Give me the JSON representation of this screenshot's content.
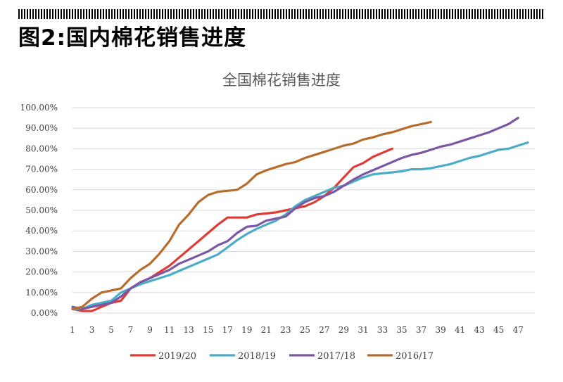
{
  "header": {
    "title": "图2:国内棉花销售进度"
  },
  "chart_data": {
    "type": "line",
    "title": "全国棉花销售进度",
    "xlabel": "",
    "ylabel": "",
    "x_ticks": [
      "1",
      "3",
      "5",
      "7",
      "9",
      "11",
      "13",
      "15",
      "17",
      "19",
      "21",
      "23",
      "25",
      "27",
      "29",
      "31",
      "33",
      "35",
      "37",
      "39",
      "41",
      "43",
      "45",
      "47"
    ],
    "xlim": [
      1,
      48
    ],
    "ylim": [
      0,
      100
    ],
    "y_ticks": [
      "0.00%",
      "10.00%",
      "20.00%",
      "30.00%",
      "40.00%",
      "50.00%",
      "60.00%",
      "70.00%",
      "80.00%",
      "90.00%",
      "100.00%"
    ],
    "grid": true,
    "legend_position": "bottom",
    "series": [
      {
        "name": "2019/20",
        "color": "#e03a35",
        "values": [
          2,
          1,
          1,
          3,
          5,
          6,
          12,
          15,
          17,
          20,
          23,
          27,
          31,
          35,
          39,
          43,
          46.5,
          46.5,
          46.5,
          48,
          48.5,
          49,
          50,
          51,
          52,
          54,
          57,
          61,
          66,
          71,
          73,
          76,
          78,
          80
        ]
      },
      {
        "name": "2018/19",
        "color": "#4bacc6",
        "values": [
          2,
          2,
          4,
          5,
          6,
          10,
          12,
          14,
          15.5,
          17,
          18.5,
          20.5,
          22.5,
          24.5,
          26.5,
          28.5,
          32,
          35.5,
          38.5,
          41,
          43,
          45,
          48,
          52,
          55,
          57,
          59,
          61,
          62,
          64,
          66,
          67.5,
          68,
          68.5,
          69,
          70,
          70,
          70.5,
          71.5,
          72.5,
          74,
          75.5,
          76.5,
          78,
          79.5,
          80,
          81.5,
          83
        ]
      },
      {
        "name": "2017/18",
        "color": "#7c57a4",
        "values": [
          3,
          2,
          3,
          4,
          5,
          8,
          12,
          15,
          17,
          19,
          21,
          24,
          26,
          28,
          30,
          33,
          35,
          39,
          42,
          42.5,
          45,
          46,
          47,
          51,
          54,
          56,
          57,
          59,
          62,
          65,
          67.5,
          69.5,
          71.5,
          73.5,
          75.5,
          77,
          78,
          79.5,
          81,
          82,
          83.5,
          85,
          86.5,
          88,
          90,
          92,
          95
        ]
      },
      {
        "name": "2016/17",
        "color": "#b86c2c",
        "values": [
          2,
          3,
          7,
          10,
          11,
          12,
          17,
          21,
          24,
          29,
          35,
          43,
          48,
          54,
          57.5,
          59,
          59.5,
          60,
          63,
          67.5,
          69.5,
          71,
          72.5,
          73.5,
          75.5,
          77,
          78.5,
          80,
          81.5,
          82.5,
          84.5,
          85.5,
          87,
          88,
          89.5,
          91,
          92,
          93
        ]
      }
    ]
  }
}
